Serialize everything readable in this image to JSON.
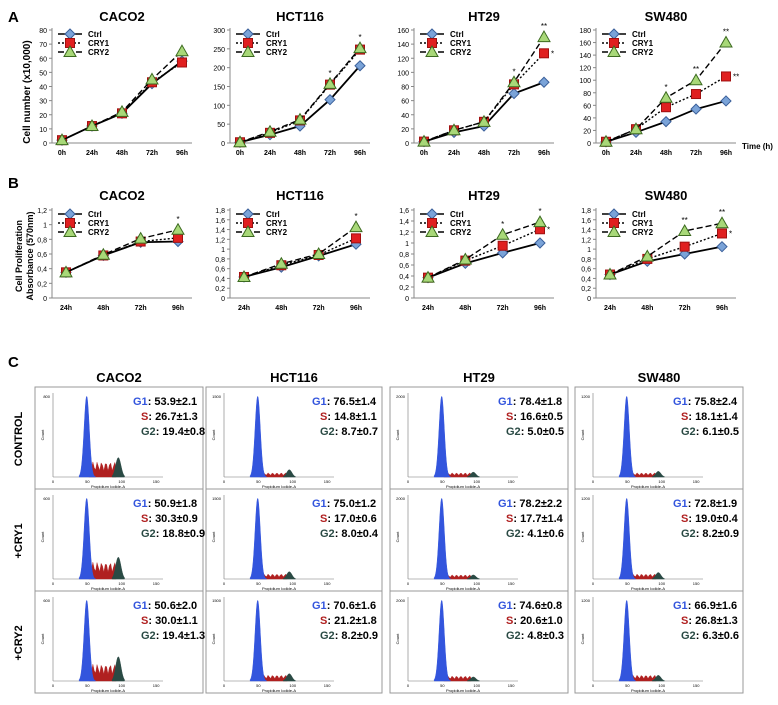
{
  "panel_labels": [
    "A",
    "B",
    "C"
  ],
  "lines": {
    "legend": [
      "Ctrl",
      "CRY1",
      "CRY2"
    ],
    "ylabel_A": "Cell number (x10,000)",
    "ylabel_B": "Cell Proliferation Absorbance (570nm)",
    "xlabel_A": "Time (h)",
    "x_A": [
      "0h",
      "24h",
      "48h",
      "72h",
      "96h"
    ],
    "x_B": [
      "24h",
      "48h",
      "72h",
      "96h"
    ]
  },
  "flow": {
    "cell_lines": [
      "CACO2",
      "HCT116",
      "HT29",
      "SW480"
    ],
    "row_labels": [
      "CONTROL",
      "+CRY1",
      "+CRY2"
    ],
    "xlabel": "Propidium Iodide-A",
    "ylabel": "Count",
    "xticks": [
      "0",
      "50",
      "100",
      "150"
    ],
    "phase_labels": [
      "G1",
      "S",
      "G2"
    ],
    "colors": {
      "G1": "#3355dd",
      "S": "#b02020",
      "G2": "#2a4a44"
    }
  },
  "chart_data": [
    {
      "type": "line",
      "panel": "A",
      "title": "CACO2",
      "categories": [
        "0h",
        "24h",
        "48h",
        "72h",
        "96h"
      ],
      "ylim": [
        0,
        80
      ],
      "yticks": [
        0,
        10,
        20,
        30,
        40,
        50,
        60,
        70,
        80
      ],
      "series": [
        {
          "name": "Ctrl",
          "values": [
            2,
            12,
            21,
            42,
            58
          ]
        },
        {
          "name": "CRY1",
          "values": [
            2,
            12,
            21,
            43,
            57
          ]
        },
        {
          "name": "CRY2",
          "values": [
            2,
            12,
            22,
            45,
            65
          ]
        }
      ],
      "stars": []
    },
    {
      "type": "line",
      "panel": "A",
      "title": "HCT116",
      "categories": [
        "0h",
        "24h",
        "48h",
        "72h",
        "96h"
      ],
      "ylim": [
        0,
        300
      ],
      "yticks": [
        0,
        50,
        100,
        150,
        200,
        250,
        300
      ],
      "series": [
        {
          "name": "Ctrl",
          "values": [
            2,
            22,
            45,
            115,
            205
          ]
        },
        {
          "name": "CRY1",
          "values": [
            2,
            27,
            60,
            155,
            248
          ]
        },
        {
          "name": "CRY2",
          "values": [
            2,
            30,
            62,
            157,
            252
          ]
        }
      ],
      "stars": [
        {
          "i": 3,
          "label": "*"
        },
        {
          "i": 4,
          "label": "*"
        }
      ]
    },
    {
      "type": "line",
      "panel": "A",
      "title": "HT29",
      "categories": [
        "0h",
        "24h",
        "48h",
        "72h",
        "96h"
      ],
      "ylim": [
        0,
        160
      ],
      "yticks": [
        0,
        20,
        40,
        60,
        80,
        100,
        120,
        140,
        160
      ],
      "series": [
        {
          "name": "Ctrl",
          "values": [
            2,
            15,
            24,
            70,
            86
          ]
        },
        {
          "name": "CRY1",
          "values": [
            2,
            18,
            30,
            83,
            127
          ]
        },
        {
          "name": "CRY2",
          "values": [
            2,
            18,
            30,
            86,
            150
          ]
        }
      ],
      "stars": [
        {
          "i": 3,
          "label": "*"
        },
        {
          "i": 4,
          "label": "**"
        },
        {
          "i": 4,
          "label": "*",
          "low": true
        }
      ]
    },
    {
      "type": "line",
      "panel": "A",
      "title": "SW480",
      "categories": [
        "0h",
        "24h",
        "48h",
        "72h",
        "96h"
      ],
      "ylim": [
        0,
        180
      ],
      "yticks": [
        0,
        20,
        40,
        60,
        80,
        100,
        120,
        140,
        160,
        180
      ],
      "series": [
        {
          "name": "Ctrl",
          "values": [
            2,
            17,
            34,
            54,
            67
          ]
        },
        {
          "name": "CRY1",
          "values": [
            2,
            22,
            57,
            78,
            106
          ]
        },
        {
          "name": "CRY2",
          "values": [
            2,
            22,
            72,
            100,
            160
          ]
        }
      ],
      "stars": [
        {
          "i": 2,
          "label": "*"
        },
        {
          "i": 3,
          "label": "**"
        },
        {
          "i": 4,
          "label": "**"
        },
        {
          "i": 4,
          "label": "**",
          "low": true
        }
      ]
    },
    {
      "type": "line",
      "panel": "B",
      "title": "CACO2",
      "categories": [
        "24h",
        "48h",
        "72h",
        "96h"
      ],
      "ylim": [
        0,
        1.2
      ],
      "yticks": [
        0,
        0.2,
        0.4,
        0.6,
        0.8,
        1,
        1.2
      ],
      "yticklabels": [
        "0",
        "0,2",
        "0,4",
        "0,6",
        "0,8",
        "1",
        "1,2"
      ],
      "series": [
        {
          "name": "Ctrl",
          "values": [
            0.35,
            0.58,
            0.76,
            0.77
          ]
        },
        {
          "name": "CRY1",
          "values": [
            0.35,
            0.58,
            0.77,
            0.82
          ]
        },
        {
          "name": "CRY2",
          "values": [
            0.35,
            0.59,
            0.81,
            0.93
          ]
        }
      ],
      "stars": [
        {
          "i": 3,
          "label": "*"
        }
      ]
    },
    {
      "type": "line",
      "panel": "B",
      "title": "HCT116",
      "categories": [
        "24h",
        "48h",
        "72h",
        "96h"
      ],
      "ylim": [
        0,
        1.8
      ],
      "yticks": [
        0,
        0.2,
        0.4,
        0.6,
        0.8,
        1,
        1.2,
        1.4,
        1.6,
        1.8
      ],
      "yticklabels": [
        "0",
        "0,2",
        "0,4",
        "0,6",
        "0,8",
        "1",
        "1,2",
        "1,4",
        "1,6",
        "1,8"
      ],
      "series": [
        {
          "name": "Ctrl",
          "values": [
            0.43,
            0.63,
            0.86,
            1.1
          ]
        },
        {
          "name": "CRY1",
          "values": [
            0.43,
            0.67,
            0.88,
            1.22
          ]
        },
        {
          "name": "CRY2",
          "values": [
            0.43,
            0.7,
            0.9,
            1.45
          ]
        }
      ],
      "stars": [
        {
          "i": 3,
          "label": "*"
        }
      ]
    },
    {
      "type": "line",
      "panel": "B",
      "title": "HT29",
      "categories": [
        "24h",
        "48h",
        "72h",
        "96h"
      ],
      "ylim": [
        0,
        1.6
      ],
      "yticks": [
        0,
        0.2,
        0.4,
        0.6,
        0.8,
        1,
        1.2,
        1.4,
        1.6
      ],
      "yticklabels": [
        "0",
        "0,2",
        "0,4",
        "0,6",
        "0,8",
        "1",
        "1,2",
        "1,4",
        "1,6"
      ],
      "series": [
        {
          "name": "Ctrl",
          "values": [
            0.37,
            0.63,
            0.82,
            1.0
          ]
        },
        {
          "name": "CRY1",
          "values": [
            0.37,
            0.68,
            0.95,
            1.25
          ]
        },
        {
          "name": "CRY2",
          "values": [
            0.37,
            0.7,
            1.15,
            1.38
          ]
        }
      ],
      "stars": [
        {
          "i": 2,
          "label": "*"
        },
        {
          "i": 3,
          "label": "*"
        },
        {
          "i": 3,
          "label": "*",
          "low": true
        }
      ]
    },
    {
      "type": "line",
      "panel": "B",
      "title": "SW480",
      "categories": [
        "24h",
        "48h",
        "72h",
        "96h"
      ],
      "ylim": [
        0,
        1.8
      ],
      "yticks": [
        0,
        0.2,
        0.4,
        0.6,
        0.8,
        1,
        1.2,
        1.4,
        1.6,
        1.8
      ],
      "yticklabels": [
        "0",
        "0,2",
        "0,4",
        "0,6",
        "0,8",
        "1",
        "1,2",
        "1,4",
        "1,6",
        "1,8"
      ],
      "series": [
        {
          "name": "Ctrl",
          "values": [
            0.48,
            0.75,
            0.9,
            1.05
          ]
        },
        {
          "name": "CRY1",
          "values": [
            0.48,
            0.8,
            1.05,
            1.32
          ]
        },
        {
          "name": "CRY2",
          "values": [
            0.48,
            0.85,
            1.37,
            1.53
          ]
        }
      ],
      "stars": [
        {
          "i": 2,
          "label": "**"
        },
        {
          "i": 3,
          "label": "**"
        },
        {
          "i": 3,
          "label": "*",
          "low": true
        }
      ]
    },
    {
      "type": "histogram",
      "panel": "C",
      "rows": [
        {
          "CACO2": {
            "G1": "53.9±2.1",
            "S": "26.7±1.3",
            "G2": "19.4±0.8",
            "ymax": "800",
            "g1h": 1,
            "sh": 0.18,
            "g2h": 0.24
          },
          "HCT116": {
            "G1": "76.5±1.4",
            "S": "14.8±1.1",
            "G2": "8.7±0.7",
            "ymax": "1500",
            "g1h": 1,
            "sh": 0.05,
            "g2h": 0.09
          },
          "HT29": {
            "G1": "78.4±1.8",
            "S": "16.6±0.5",
            "G2": "5.0±0.5",
            "ymax": "2000",
            "g1h": 1,
            "sh": 0.05,
            "g2h": 0.06
          },
          "SW480": {
            "G1": "75.8±2.4",
            "S": "18.1±1.4",
            "G2": "6.1±0.5",
            "ymax": "1200",
            "g1h": 1,
            "sh": 0.05,
            "g2h": 0.07
          }
        },
        {
          "CACO2": {
            "G1": "50.9±1.8",
            "S": "30.3±0.9",
            "G2": "18.8±0.9",
            "ymax": "600",
            "g1h": 1,
            "sh": 0.2,
            "g2h": 0.27
          },
          "HCT116": {
            "G1": "75.0±1.2",
            "S": "17.0±0.6",
            "G2": "8.0±0.4",
            "ymax": "1500",
            "g1h": 1,
            "sh": 0.06,
            "g2h": 0.09
          },
          "HT29": {
            "G1": "78.2±2.2",
            "S": "17.7±1.4",
            "G2": "4.1±0.6",
            "ymax": "2000",
            "g1h": 1,
            "sh": 0.05,
            "g2h": 0.05
          },
          "SW480": {
            "G1": "72.8±1.9",
            "S": "19.0±0.4",
            "G2": "8.2±0.9",
            "ymax": "1200",
            "g1h": 1,
            "sh": 0.06,
            "g2h": 0.08
          }
        },
        {
          "CACO2": {
            "G1": "50.6±2.0",
            "S": "30.0±1.1",
            "G2": "19.4±1.3",
            "ymax": "600",
            "g1h": 1,
            "sh": 0.2,
            "g2h": 0.3
          },
          "HCT116": {
            "G1": "70.6±1.6",
            "S": "21.2±1.8",
            "G2": "8.2±0.9",
            "ymax": "1500",
            "g1h": 1,
            "sh": 0.07,
            "g2h": 0.09
          },
          "HT29": {
            "G1": "74.6±0.8",
            "S": "20.6±1.0",
            "G2": "4.8±0.3",
            "ymax": "2000",
            "g1h": 1,
            "sh": 0.06,
            "g2h": 0.05
          },
          "SW480": {
            "G1": "66.9±1.6",
            "S": "26.8±1.3",
            "G2": "6.3±0.6",
            "ymax": "1200",
            "g1h": 1,
            "sh": 0.07,
            "g2h": 0.07
          }
        }
      ]
    }
  ]
}
